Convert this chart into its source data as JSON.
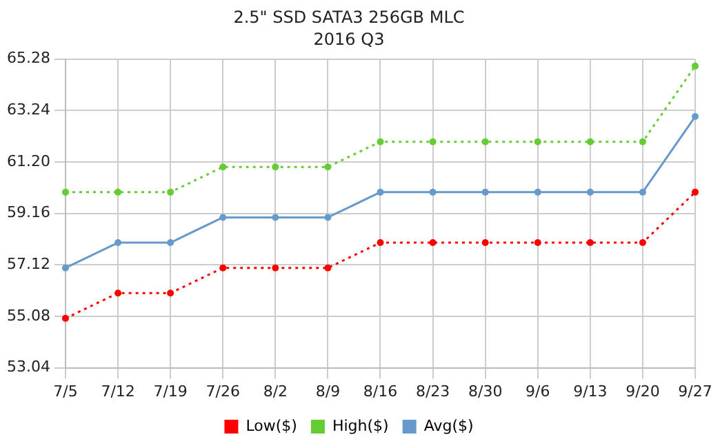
{
  "chart_data": {
    "type": "line",
    "title": "2.5\" SSD SATA3 256GB MLC",
    "subtitle": "2016 Q3",
    "categories": [
      "7/5",
      "7/12",
      "7/19",
      "7/26",
      "8/2",
      "8/9",
      "8/16",
      "8/23",
      "8/30",
      "9/6",
      "9/13",
      "9/20",
      "9/27"
    ],
    "series": [
      {
        "name": "Low($)",
        "color": "#ff0000",
        "line_style": "dotted",
        "values": [
          55,
          56,
          56,
          57,
          57,
          57,
          58,
          58,
          58,
          58,
          58,
          58,
          60
        ]
      },
      {
        "name": "High($)",
        "color": "#66cc33",
        "line_style": "dotted",
        "values": [
          60,
          60,
          60,
          61,
          61,
          61,
          62,
          62,
          62,
          62,
          62,
          62,
          65
        ]
      },
      {
        "name": "Avg($)",
        "color": "#6699cc",
        "line_style": "solid",
        "values": [
          57,
          58,
          58,
          59,
          59,
          59,
          60,
          60,
          60,
          60,
          60,
          60,
          63
        ]
      }
    ],
    "ylim": [
      53.04,
      65.28
    ],
    "yticks": [
      53.04,
      55.08,
      57.12,
      59.16,
      {
        "value": 61.2,
        "label": "61.20"
      },
      63.24,
      65.28
    ],
    "grid": true,
    "legend": "bottom",
    "marker": "circle"
  }
}
